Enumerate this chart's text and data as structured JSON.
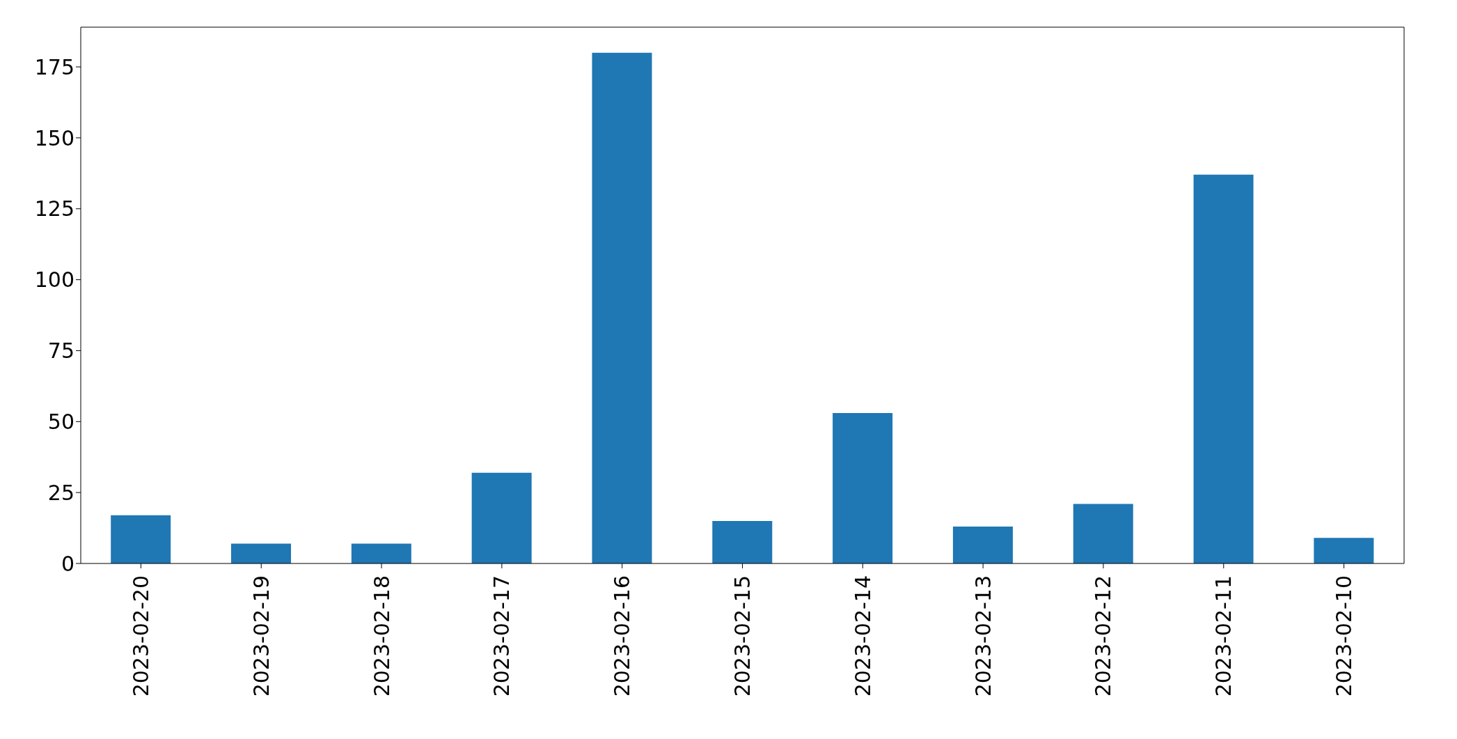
{
  "chart_data": {
    "type": "bar",
    "categories": [
      "2023-02-20",
      "2023-02-19",
      "2023-02-18",
      "2023-02-17",
      "2023-02-16",
      "2023-02-15",
      "2023-02-14",
      "2023-02-13",
      "2023-02-12",
      "2023-02-11",
      "2023-02-10"
    ],
    "values": [
      17,
      7,
      7,
      32,
      180,
      15,
      53,
      13,
      21,
      137,
      9
    ],
    "color": "#1f77b4",
    "ylim": [
      0,
      189
    ],
    "yticks": [
      0,
      25,
      50,
      75,
      100,
      125,
      150,
      175
    ],
    "grid": false
  }
}
